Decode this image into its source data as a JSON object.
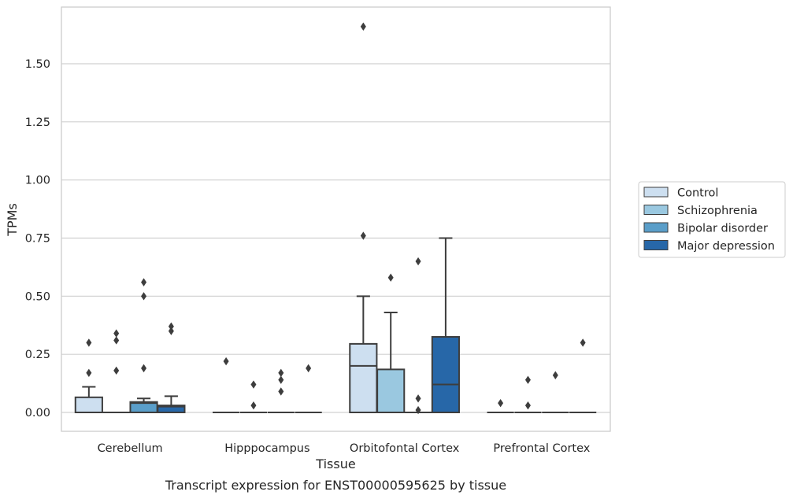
{
  "caption": "Transcript expression for ENST00000595625 by tissue",
  "chart_data": {
    "type": "box",
    "xlabel": "Tissue",
    "ylabel": "TPMs",
    "ylim": [
      -0.08,
      1.74
    ],
    "yticks": [
      "0.00",
      "0.25",
      "0.50",
      "0.75",
      "1.00",
      "1.25",
      "1.50"
    ],
    "ytick_values": [
      0,
      0.25,
      0.5,
      0.75,
      1.0,
      1.25,
      1.5
    ],
    "grid": "horizontal",
    "legend_position": "right",
    "categories": [
      "Cerebellum",
      "Hipppocampus",
      "Orbitofontal Cortex",
      "Prefrontal Cortex"
    ],
    "series": [
      {
        "name": "Control",
        "color": "#cddff0",
        "boxes": [
          {
            "q1": 0,
            "median": 0,
            "q3": 0.065,
            "whisker_low": 0,
            "whisker_high": 0.11,
            "outliers": [
              0.17,
              0.3
            ]
          },
          {
            "q1": 0,
            "median": 0,
            "q3": 0,
            "whisker_low": 0,
            "whisker_high": 0,
            "outliers": [
              0.22
            ]
          },
          {
            "q1": 0,
            "median": 0.2,
            "q3": 0.295,
            "whisker_low": 0,
            "whisker_high": 0.5,
            "outliers": [
              0.76,
              1.66
            ]
          },
          {
            "q1": 0,
            "median": 0,
            "q3": 0,
            "whisker_low": 0,
            "whisker_high": 0,
            "outliers": [
              0.04
            ]
          }
        ]
      },
      {
        "name": "Schizophrenia",
        "color": "#9ac8e0",
        "boxes": [
          {
            "q1": 0,
            "median": 0,
            "q3": 0,
            "whisker_low": 0,
            "whisker_high": 0,
            "outliers": [
              0.18,
              0.31,
              0.34
            ]
          },
          {
            "q1": 0,
            "median": 0,
            "q3": 0,
            "whisker_low": 0,
            "whisker_high": 0,
            "outliers": [
              0.03,
              0.12
            ]
          },
          {
            "q1": 0,
            "median": 0,
            "q3": 0.185,
            "whisker_low": 0,
            "whisker_high": 0.43,
            "outliers": [
              0.58
            ]
          },
          {
            "q1": 0,
            "median": 0,
            "q3": 0,
            "whisker_low": 0,
            "whisker_high": 0,
            "outliers": [
              0.03,
              0.14
            ]
          }
        ]
      },
      {
        "name": "Bipolar disorder",
        "color": "#5a9ec9",
        "boxes": [
          {
            "q1": 0,
            "median": 0.04,
            "q3": 0.045,
            "whisker_low": 0,
            "whisker_high": 0.06,
            "outliers": [
              0.19,
              0.5,
              0.56
            ]
          },
          {
            "q1": 0,
            "median": 0,
            "q3": 0,
            "whisker_low": 0,
            "whisker_high": 0,
            "outliers": [
              0.09,
              0.14,
              0.17
            ]
          },
          {
            "q1": 0,
            "median": 0,
            "q3": 0,
            "whisker_low": 0,
            "whisker_high": 0,
            "outliers": [
              0.01,
              0.06,
              0.65
            ]
          },
          {
            "q1": 0,
            "median": 0,
            "q3": 0,
            "whisker_low": 0,
            "whisker_high": 0,
            "outliers": [
              0.16
            ]
          }
        ]
      },
      {
        "name": "Major depression",
        "color": "#2767a8",
        "boxes": [
          {
            "q1": 0,
            "median": 0.025,
            "q3": 0.03,
            "whisker_low": 0,
            "whisker_high": 0.07,
            "outliers": [
              0.35,
              0.37
            ]
          },
          {
            "q1": 0,
            "median": 0,
            "q3": 0,
            "whisker_low": 0,
            "whisker_high": 0,
            "outliers": [
              0.19
            ]
          },
          {
            "q1": 0,
            "median": 0.12,
            "q3": 0.325,
            "whisker_low": 0,
            "whisker_high": 0.75,
            "outliers": []
          },
          {
            "q1": 0,
            "median": 0,
            "q3": 0,
            "whisker_low": 0,
            "whisker_high": 0,
            "outliers": [
              0.3
            ]
          }
        ]
      }
    ]
  }
}
